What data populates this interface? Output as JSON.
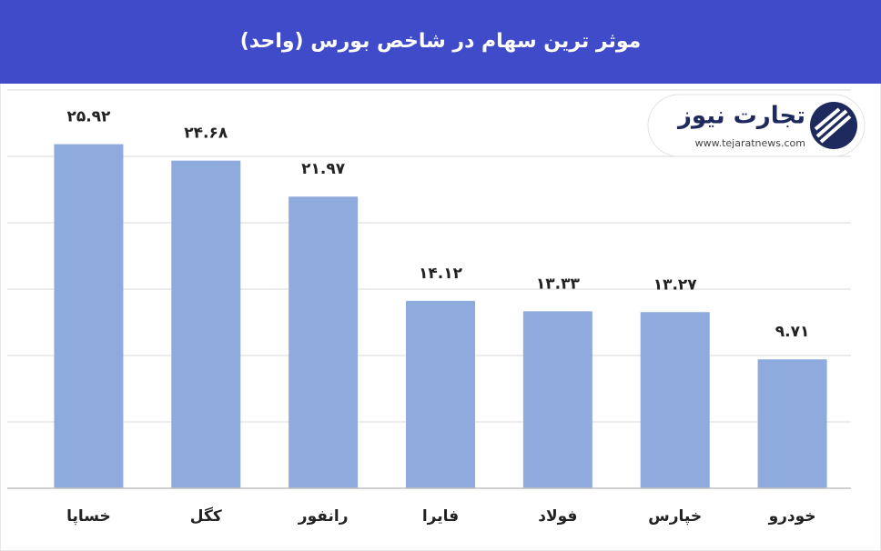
{
  "chart_data": {
    "type": "bar",
    "title": "موثر ترین سهام در شاخص بورس (واحد)",
    "categories": [
      "خساپا",
      "کگل",
      "رانفور",
      "فایرا",
      "فولاد",
      "خپارس",
      "خودرو"
    ],
    "values": [
      25.92,
      24.68,
      21.97,
      14.12,
      13.33,
      13.27,
      9.71
    ],
    "value_labels": [
      "۲۵.۹۲",
      "۲۴.۶۸",
      "۲۱.۹۷",
      "۱۴.۱۲",
      "۱۳.۳۳",
      "۱۳.۲۷",
      "۹.۷۱"
    ],
    "color": "#8faadc",
    "ylim": [
      0,
      30
    ],
    "yticks": [
      0,
      5,
      10,
      15,
      20,
      25,
      30
    ],
    "grid": true,
    "logo": {
      "name": "تجارت نیوز",
      "url": "www.tejaratnews.com"
    }
  }
}
